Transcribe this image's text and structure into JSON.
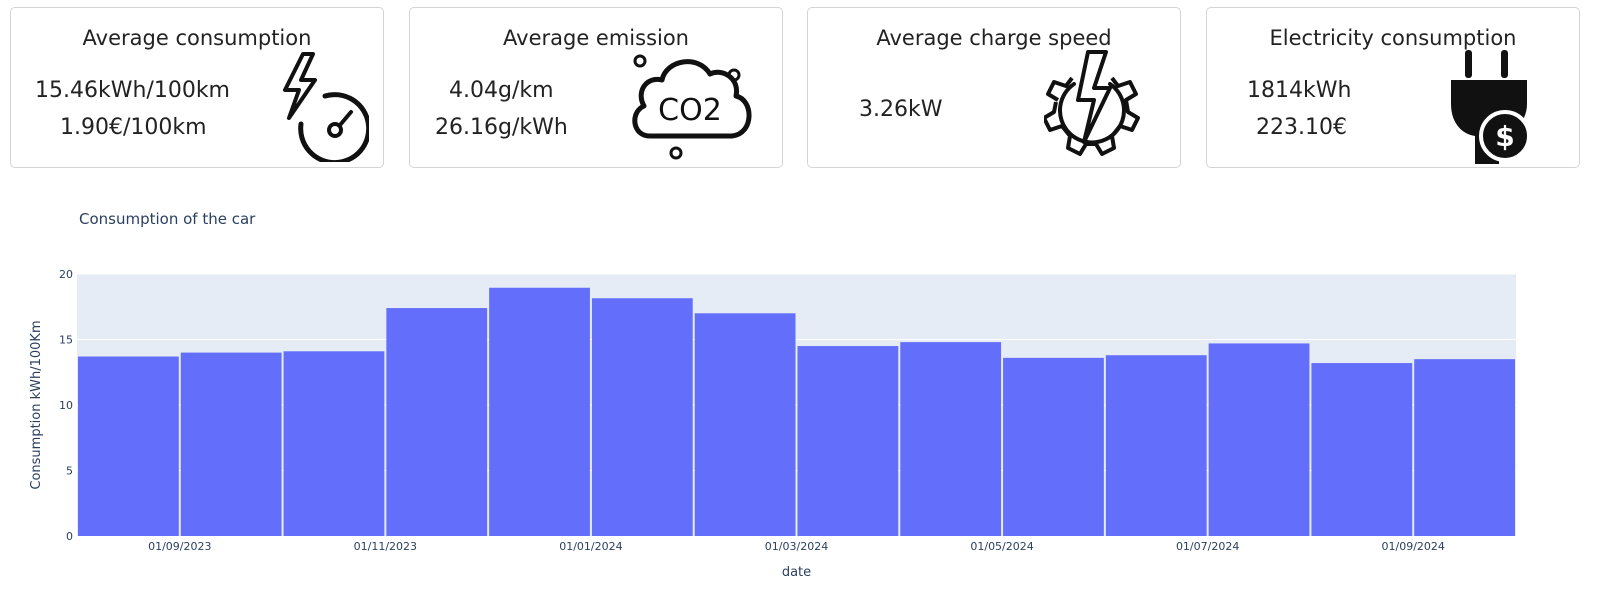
{
  "cards": [
    {
      "title": "Average consumption",
      "lines": [
        "15.46kWh/100km",
        "1.90€/100km"
      ],
      "icon": "lightning-gauge-icon"
    },
    {
      "title": "Average emission",
      "lines": [
        "4.04g/km",
        "26.16g/kWh"
      ],
      "icon": "co2-cloud-icon",
      "icon_text": "CO2"
    },
    {
      "title": "Average charge speed",
      "lines": [
        "3.26kW"
      ],
      "icon": "lightning-gear-icon"
    },
    {
      "title": "Electricity consumption",
      "lines": [
        "1814kWh",
        "223.10€"
      ],
      "icon": "plug-dollar-icon"
    }
  ],
  "chart": {
    "title": "Consumption of the car",
    "xlabel": "date",
    "ylabel": "Consumption kWh/100Km"
  },
  "chart_data": {
    "type": "bar",
    "title": "Consumption of the car",
    "xlabel": "date",
    "ylabel": "Consumption kWh/100Km",
    "ylim": [
      0,
      20
    ],
    "yticks": [
      0,
      5,
      10,
      15,
      20
    ],
    "x_tick_labels": [
      "01/09/2023",
      "01/11/2023",
      "01/01/2024",
      "01/03/2024",
      "01/05/2024",
      "01/07/2024",
      "01/09/2024"
    ],
    "categories": [
      "08/2023",
      "09/2023",
      "10/2023",
      "11/2023",
      "12/2023",
      "01/2024",
      "02/2024",
      "03/2024",
      "04/2024",
      "05/2024",
      "06/2024",
      "07/2024",
      "08/2024",
      "09/2024"
    ],
    "values": [
      13.7,
      14.0,
      14.1,
      17.4,
      18.95,
      18.15,
      17.0,
      14.5,
      14.8,
      13.6,
      13.8,
      14.7,
      13.2,
      13.5
    ],
    "bar_color": "#636efa",
    "plot_bg": "#e5ecf6",
    "grid": true
  }
}
